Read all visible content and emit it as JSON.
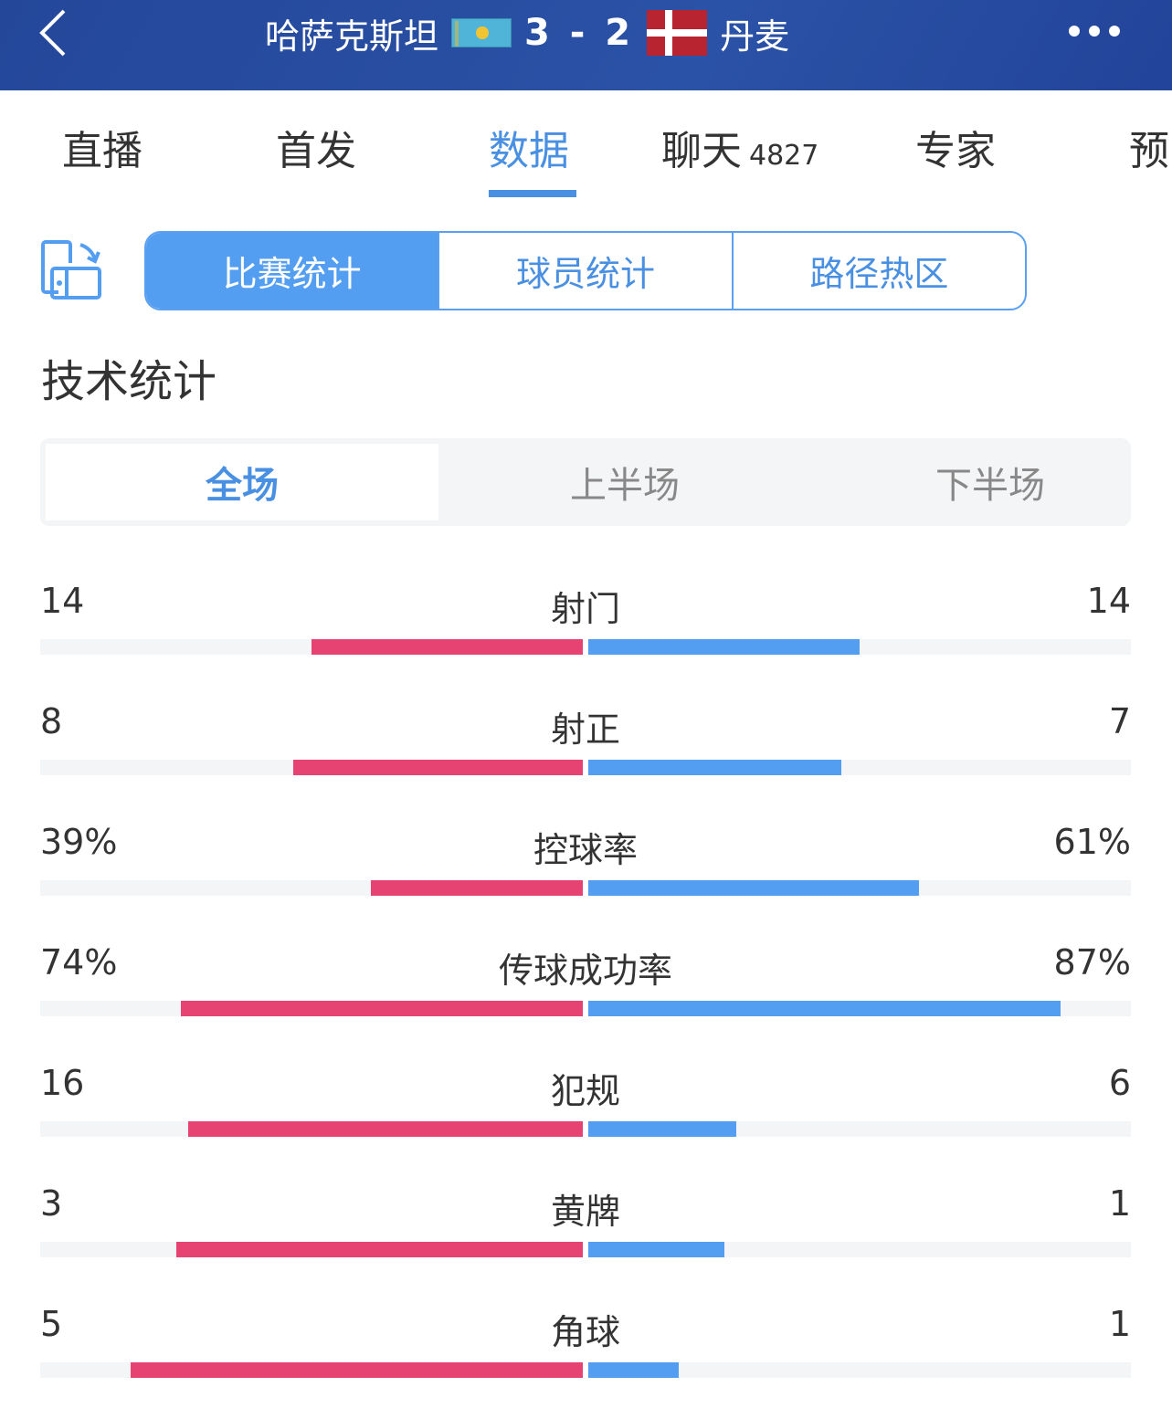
{
  "header": {
    "home_team": "哈萨克斯坦",
    "away_team": "丹麦",
    "score": "3 - 2",
    "home_flag": "kazakhstan-flag",
    "away_flag": "denmark-flag"
  },
  "tabs": [
    {
      "label": "直播"
    },
    {
      "label": "首发"
    },
    {
      "label": "数据",
      "active": true
    },
    {
      "label": "聊天",
      "count": "4827"
    },
    {
      "label": "专家"
    },
    {
      "label": "预"
    }
  ],
  "segments": [
    {
      "label": "比赛统计",
      "active": true
    },
    {
      "label": "球员统计"
    },
    {
      "label": "路径热区"
    }
  ],
  "section_title": "技术统计",
  "periods": [
    {
      "label": "全场",
      "active": true
    },
    {
      "label": "上半场"
    },
    {
      "label": "下半场"
    }
  ],
  "colors": {
    "accent": "#4a90e2",
    "home": "#e64373",
    "away": "#549ef2",
    "header": "#24479a"
  },
  "stats": [
    {
      "label": "射门",
      "home": "14",
      "away": "14"
    },
    {
      "label": "射正",
      "home": "8",
      "away": "7"
    },
    {
      "label": "控球率",
      "home": "39%",
      "away": "61%"
    },
    {
      "label": "传球成功率",
      "home": "74%",
      "away": "87%"
    },
    {
      "label": "犯规",
      "home": "16",
      "away": "6"
    },
    {
      "label": "黄牌",
      "home": "3",
      "away": "1"
    },
    {
      "label": "角球",
      "home": "5",
      "away": "1"
    }
  ]
}
